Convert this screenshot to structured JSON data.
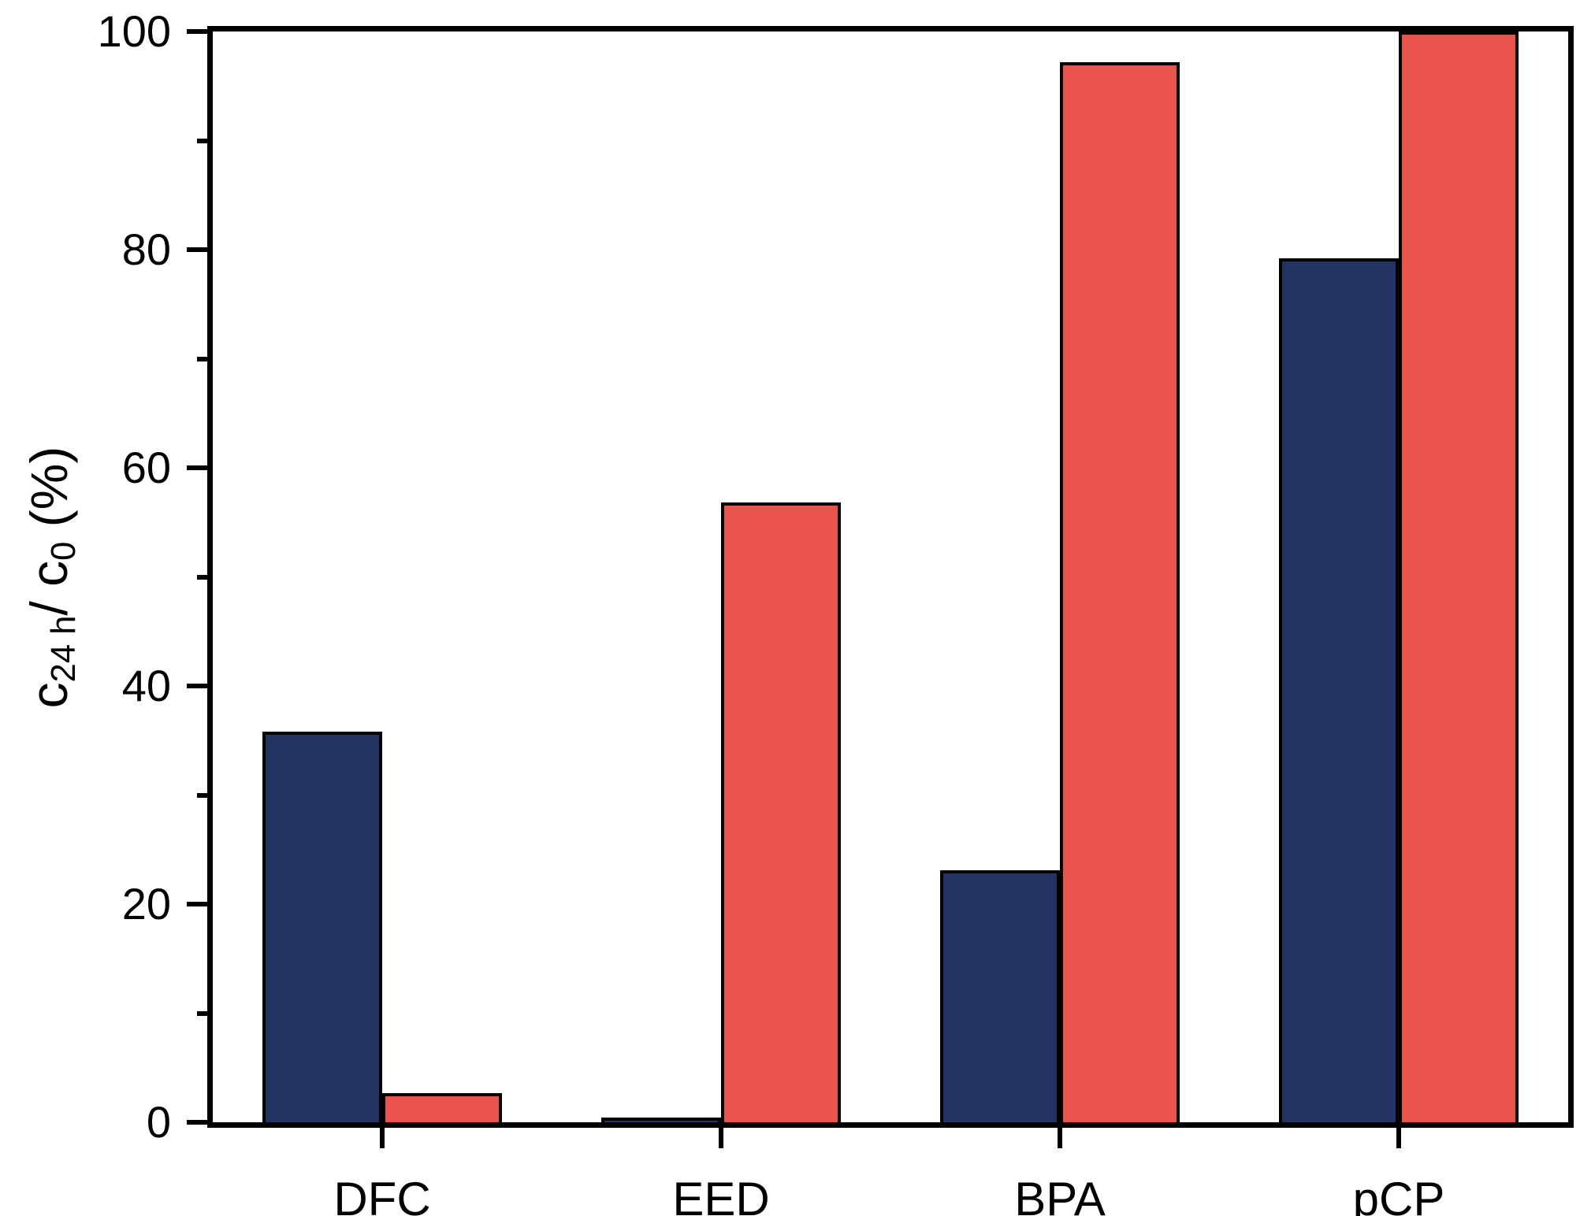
{
  "chart_data": {
    "type": "bar",
    "title": "",
    "xlabel": "",
    "ylabel": "c24 h/ c0 (%)",
    "ylabel_parts": [
      {
        "text": "c",
        "sub": false
      },
      {
        "text": "24 h",
        "sub": true
      },
      {
        "text": "/ c",
        "sub": false
      },
      {
        "text": "0",
        "sub": true
      },
      {
        "text": " (%)",
        "sub": false
      }
    ],
    "categories": [
      "DFC",
      "EED",
      "BPA",
      "pCP"
    ],
    "series": [
      {
        "name": "navy",
        "color": "#243462",
        "values": [
          35.8,
          0.4,
          23.1,
          79.2
        ]
      },
      {
        "name": "red",
        "color": "#EA534E",
        "values": [
          2.7,
          56.8,
          97.2,
          100
        ]
      }
    ],
    "ylim": [
      0,
      100
    ],
    "yticks_major": [
      0,
      20,
      40,
      60,
      80,
      100
    ],
    "yticks_minor": [
      10,
      30,
      50,
      70,
      90
    ],
    "ytick_labels": [
      "0",
      "20",
      "40",
      "60",
      "80",
      "100"
    ],
    "bar_outline_color": "#000000",
    "axis_color": "#000000",
    "background_color": "#FFFFFF",
    "grid": false,
    "legend": "none"
  }
}
